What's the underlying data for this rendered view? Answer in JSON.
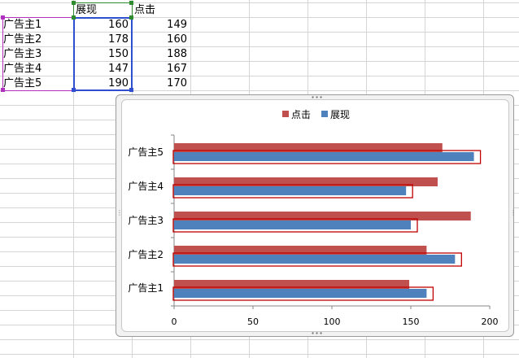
{
  "sheet": {
    "headers": {
      "b1": "展现",
      "c1": "点击"
    },
    "rows": [
      {
        "label": "广告主1",
        "display": "160",
        "click": "149"
      },
      {
        "label": "广告主2",
        "display": "178",
        "click": "160"
      },
      {
        "label": "广告主3",
        "display": "150",
        "click": "188"
      },
      {
        "label": "广告主4",
        "display": "147",
        "click": "167"
      },
      {
        "label": "广告主5",
        "display": "190",
        "click": "170"
      }
    ]
  },
  "colors": {
    "click_series": "#c0504d",
    "display_series": "#4f81bd",
    "selection_blue": "#2f4fd0",
    "selection_purple": "#b030c0",
    "selection_green": "#2e8b2e",
    "highlight_outline": "#c00000"
  },
  "chart_data": {
    "type": "bar",
    "orientation": "horizontal",
    "categories": [
      "广告主1",
      "广告主2",
      "广告主3",
      "广告主4",
      "广告主5"
    ],
    "series": [
      {
        "name": "点击",
        "values": [
          149,
          160,
          188,
          167,
          170
        ]
      },
      {
        "name": "展现",
        "values": [
          160,
          178,
          150,
          147,
          190
        ]
      }
    ],
    "xlim": [
      0,
      200
    ],
    "xticks": [
      "0",
      "50",
      "100",
      "150",
      "200"
    ],
    "grid": false,
    "legend_position": "top",
    "legend": [
      "点击",
      "展现"
    ]
  }
}
